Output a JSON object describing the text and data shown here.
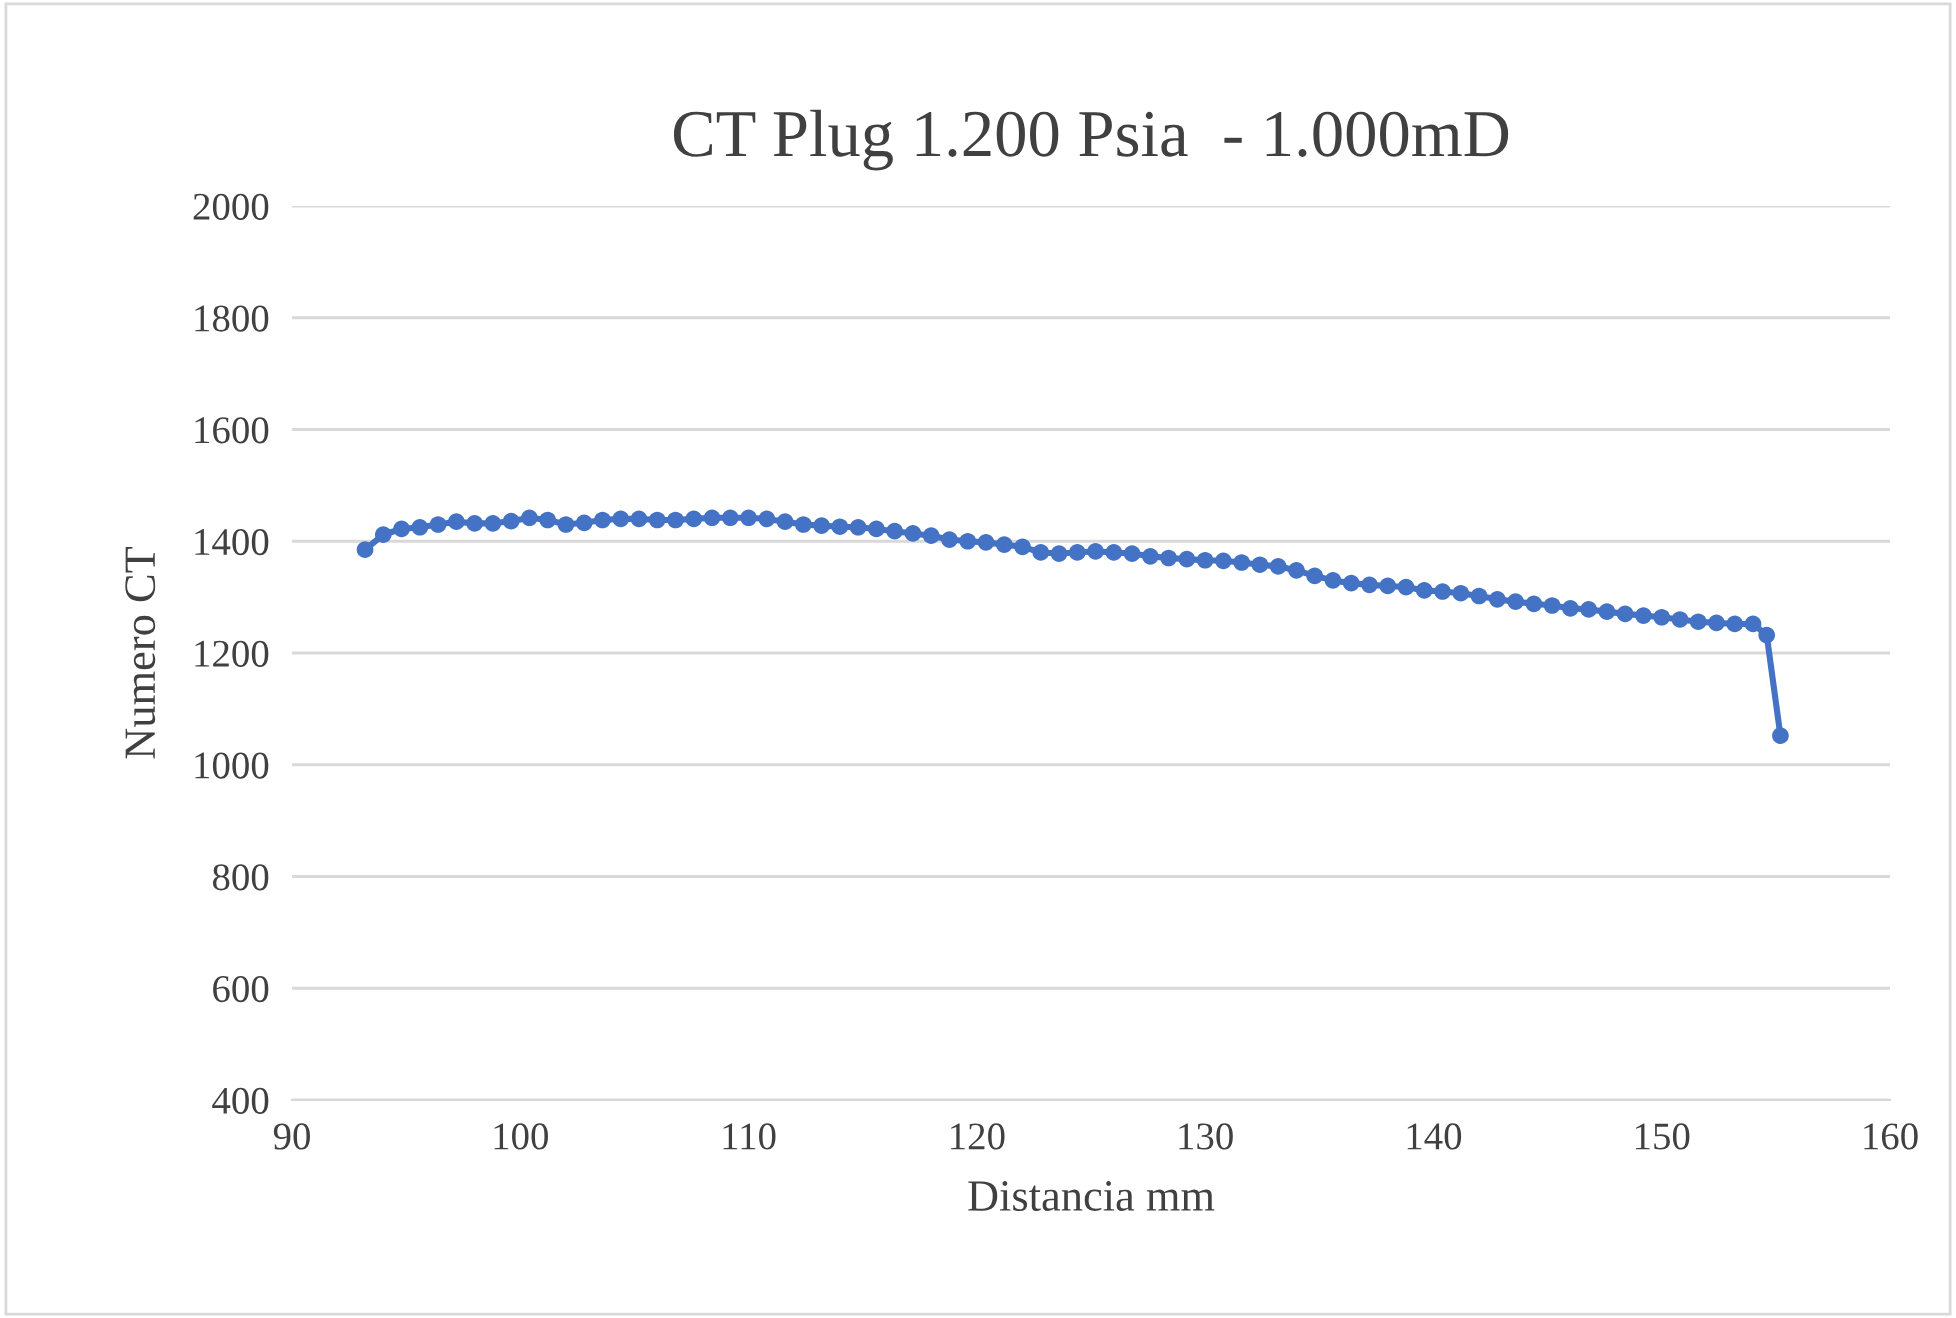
{
  "chart_data": {
    "type": "line",
    "title": "CT Plug 1.200 Psia  - 1.000mD",
    "xlabel": "Distancia mm",
    "ylabel": "Numero CT",
    "x": [
      93.2,
      94.0,
      94.8,
      95.6,
      96.4,
      97.2,
      98.0,
      98.8,
      99.6,
      100.4,
      101.2,
      102.0,
      102.8,
      103.6,
      104.4,
      105.2,
      106.0,
      106.8,
      107.6,
      108.4,
      109.2,
      110.0,
      110.8,
      111.6,
      112.4,
      113.2,
      114.0,
      114.8,
      115.6,
      116.4,
      117.2,
      118.0,
      118.8,
      119.6,
      120.4,
      121.2,
      122.0,
      122.8,
      123.6,
      124.4,
      125.2,
      126.0,
      126.8,
      127.6,
      128.4,
      129.2,
      130.0,
      130.8,
      131.6,
      132.4,
      133.2,
      134.0,
      134.8,
      135.6,
      136.4,
      137.2,
      138.0,
      138.8,
      139.6,
      140.4,
      141.2,
      142.0,
      142.8,
      143.6,
      144.4,
      145.2,
      146.0,
      146.8,
      147.6,
      148.4,
      149.2,
      150.0,
      150.8,
      151.6,
      152.4,
      153.2,
      154.0,
      154.6,
      155.2
    ],
    "series": [
      {
        "color": "#4472c4",
        "values": [
          1385,
          1412,
          1422,
          1425,
          1430,
          1435,
          1432,
          1432,
          1436,
          1442,
          1438,
          1430,
          1433,
          1438,
          1440,
          1440,
          1438,
          1438,
          1440,
          1442,
          1442,
          1442,
          1440,
          1435,
          1430,
          1428,
          1426,
          1425,
          1422,
          1418,
          1414,
          1410,
          1403,
          1400,
          1398,
          1394,
          1390,
          1380,
          1378,
          1380,
          1382,
          1380,
          1378,
          1373,
          1370,
          1368,
          1366,
          1365,
          1362,
          1358,
          1355,
          1348,
          1338,
          1330,
          1325,
          1322,
          1320,
          1318,
          1312,
          1310,
          1307,
          1302,
          1296,
          1292,
          1288,
          1285,
          1280,
          1278,
          1274,
          1270,
          1267,
          1264,
          1260,
          1256,
          1254,
          1252,
          1252,
          1232,
          1052
        ]
      }
    ],
    "xlim": [
      90,
      160
    ],
    "xticks": [
      90,
      100,
      110,
      120,
      130,
      140,
      150,
      160
    ],
    "ylim": [
      400,
      2000
    ],
    "yticks": [
      400,
      600,
      800,
      1000,
      1200,
      1400,
      1600,
      1800,
      2000
    ],
    "grid": "y",
    "legend": false,
    "marker": "circle",
    "line_style": "solid"
  }
}
